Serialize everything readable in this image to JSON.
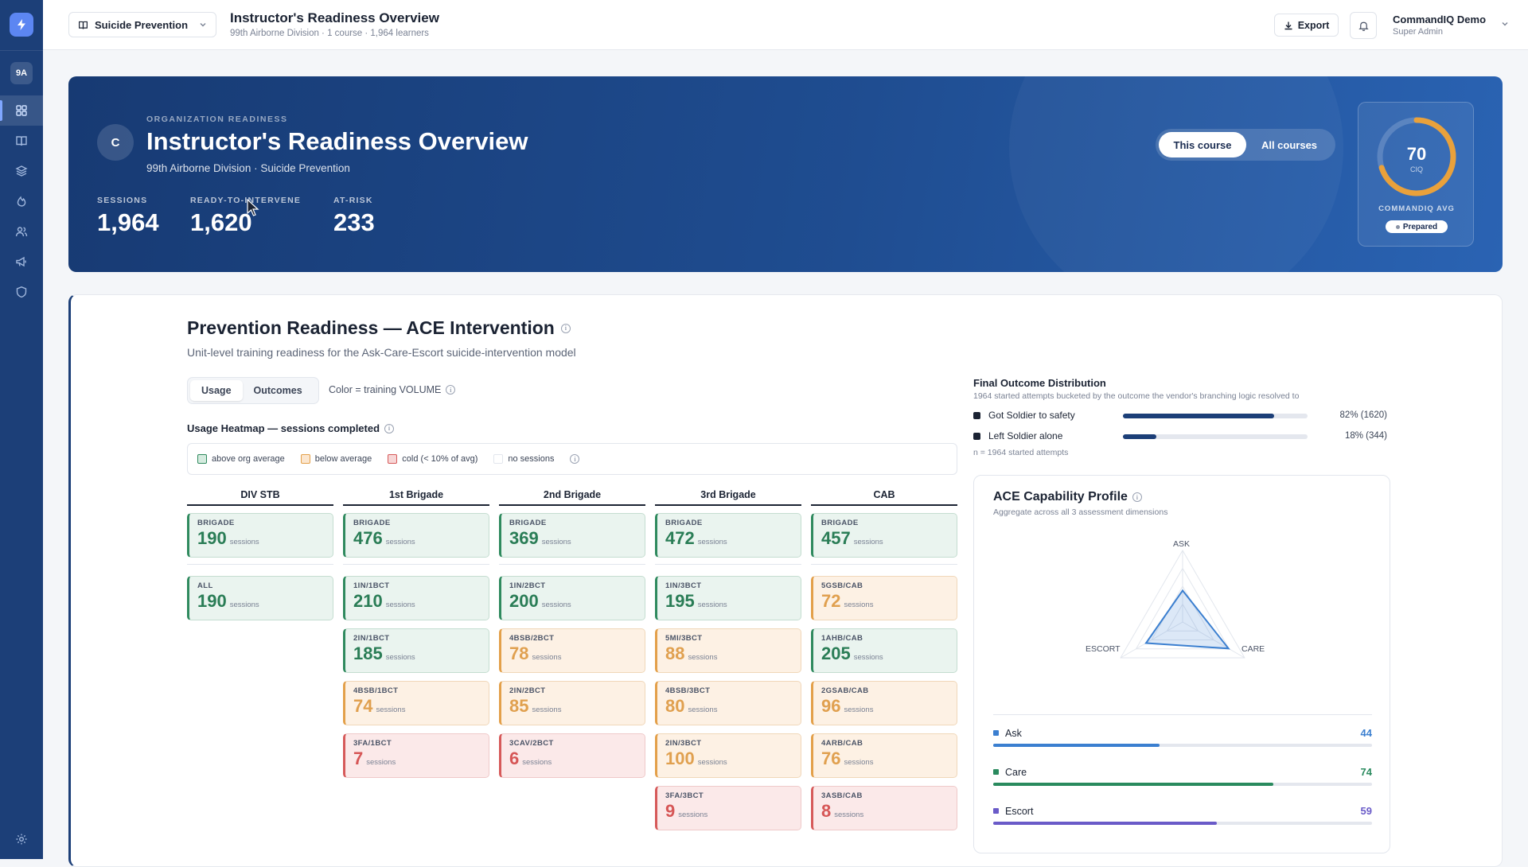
{
  "sidebar": {
    "org_badge": "9A",
    "nav": [
      {
        "name": "dashboard-icon"
      },
      {
        "name": "book-icon"
      },
      {
        "name": "layers-icon"
      },
      {
        "name": "flame-icon"
      },
      {
        "name": "users-icon"
      },
      {
        "name": "megaphone-icon"
      },
      {
        "name": "shield-icon"
      }
    ]
  },
  "topbar": {
    "course": "Suicide Prevention",
    "title": "Instructor's Readiness Overview",
    "subtitle": "99th Airborne Division · 1 course · 1,964 learners",
    "export": "Export",
    "user_name": "CommandIQ Demo",
    "user_role": "Super Admin"
  },
  "hero": {
    "avatar": "C",
    "eyebrow": "ORGANIZATION READINESS",
    "title": "Instructor's Readiness Overview",
    "subtitle": "99th Airborne Division · Suicide Prevention",
    "stats": [
      {
        "label": "SESSIONS",
        "value": "1,964"
      },
      {
        "label": "READY-TO-INTERVENE",
        "value": "1,620"
      },
      {
        "label": "AT-RISK",
        "value": "233"
      }
    ],
    "toggle": {
      "on": "This course",
      "off": "All courses"
    },
    "ciq": {
      "value": "70",
      "unit": "CIQ",
      "label": "COMMANDIQ AVG",
      "badge": "Prepared",
      "ring_fraction": 0.7,
      "ring_color": "#e9a13b"
    }
  },
  "section": {
    "title": "Prevention Readiness — ACE Intervention",
    "subtitle": "Unit-level training readiness for the Ask-Care-Escort suicide-intervention model",
    "tabs": [
      "Usage",
      "Outcomes"
    ],
    "color_note": "Color = training VOLUME",
    "heat_title": "Usage Heatmap — sessions completed",
    "legend": [
      {
        "label": "above org average",
        "color": "#d5ebdf",
        "border": "#2f8a5e"
      },
      {
        "label": "below average",
        "color": "#fbe6cf",
        "border": "#e3a04a"
      },
      {
        "label": "cold (< 10% of avg)",
        "color": "#f7d6d6",
        "border": "#d65a5a"
      },
      {
        "label": "no sessions",
        "color": "#ffffff",
        "border": "#e2e6ed"
      }
    ],
    "sessions_word": "sessions",
    "columns": [
      {
        "name": "DIV STB",
        "cells": [
          {
            "label": "BRIGADE",
            "value": "190",
            "status": "good"
          },
          {
            "label": "ALL",
            "value": "190",
            "status": "good"
          }
        ]
      },
      {
        "name": "1st Brigade",
        "cells": [
          {
            "label": "BRIGADE",
            "value": "476",
            "status": "good"
          },
          {
            "label": "1IN/1BCT",
            "value": "210",
            "status": "good"
          },
          {
            "label": "2IN/1BCT",
            "value": "185",
            "status": "good"
          },
          {
            "label": "4BSB/1BCT",
            "value": "74",
            "status": "below"
          },
          {
            "label": "3FA/1BCT",
            "value": "7",
            "status": "cold"
          }
        ]
      },
      {
        "name": "2nd Brigade",
        "cells": [
          {
            "label": "BRIGADE",
            "value": "369",
            "status": "good"
          },
          {
            "label": "1IN/2BCT",
            "value": "200",
            "status": "good"
          },
          {
            "label": "4BSB/2BCT",
            "value": "78",
            "status": "below"
          },
          {
            "label": "2IN/2BCT",
            "value": "85",
            "status": "below"
          },
          {
            "label": "3CAV/2BCT",
            "value": "6",
            "status": "cold"
          }
        ]
      },
      {
        "name": "3rd Brigade",
        "cells": [
          {
            "label": "BRIGADE",
            "value": "472",
            "status": "good"
          },
          {
            "label": "1IN/3BCT",
            "value": "195",
            "status": "good"
          },
          {
            "label": "5MI/3BCT",
            "value": "88",
            "status": "below"
          },
          {
            "label": "4BSB/3BCT",
            "value": "80",
            "status": "below"
          },
          {
            "label": "2IN/3BCT",
            "value": "100",
            "status": "below"
          },
          {
            "label": "3FA/3BCT",
            "value": "9",
            "status": "cold"
          }
        ]
      },
      {
        "name": "CAB",
        "cells": [
          {
            "label": "BRIGADE",
            "value": "457",
            "status": "good"
          },
          {
            "label": "5GSB/CAB",
            "value": "72",
            "status": "below"
          },
          {
            "label": "1AHB/CAB",
            "value": "205",
            "status": "good"
          },
          {
            "label": "2GSAB/CAB",
            "value": "96",
            "status": "below"
          },
          {
            "label": "4ARB/CAB",
            "value": "76",
            "status": "below"
          },
          {
            "label": "3ASB/CAB",
            "value": "8",
            "status": "cold"
          }
        ]
      }
    ]
  },
  "outcomes": {
    "title": "Final Outcome Distribution",
    "subtitle": "1964 started attempts bucketed by the outcome the vendor's branching logic resolved to",
    "rows": [
      {
        "label": "Got Soldier to safety",
        "fraction": 0.82,
        "value": "82% (1620)"
      },
      {
        "label": "Left Soldier alone",
        "fraction": 0.18,
        "value": "18% (344)"
      }
    ],
    "n_note": "n = 1964 started attempts"
  },
  "ace": {
    "title": "ACE Capability Profile",
    "subtitle": "Aggregate across all 3 assessment dimensions",
    "axes": [
      "ASK",
      "CARE",
      "ESCORT"
    ],
    "bars": [
      {
        "label": "Ask",
        "value": 44,
        "display": "44",
        "color": "#3b7fd0"
      },
      {
        "label": "Care",
        "value": 74,
        "display": "74",
        "color": "#2a8a5e"
      },
      {
        "label": "Escort",
        "value": 59,
        "display": "59",
        "color": "#6a5bc8"
      }
    ]
  }
}
